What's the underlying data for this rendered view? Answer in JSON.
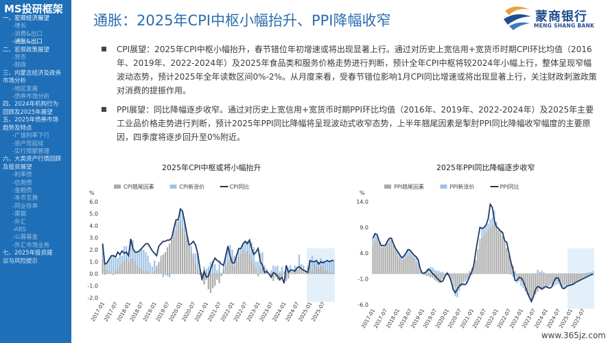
{
  "sidebar": {
    "title": "MS投研框架",
    "items": [
      {
        "label": "一、宏观经济展望",
        "level": 1,
        "active": true
      },
      {
        "label": "-增长",
        "level": 2
      },
      {
        "label": "-消费&出口",
        "level": 2
      },
      {
        "label": "-通胀&出口",
        "level": 2,
        "active": true
      },
      {
        "label": "二、宏观政策展望",
        "level": 1
      },
      {
        "label": "-货币",
        "level": 2
      },
      {
        "label": "-财政",
        "level": 2
      },
      {
        "label": "三、内蒙古经济及政务",
        "level": 1
      },
      {
        "label": "市场分析",
        "level": 1
      },
      {
        "label": "-地区发展",
        "level": 2
      },
      {
        "label": "-债券市场分析",
        "level": 2
      },
      {
        "label": "四、2024年机构行为",
        "level": 1
      },
      {
        "label": "回顾及2025年展望",
        "level": 1
      },
      {
        "label": "五、2025年债券市场",
        "level": 1
      },
      {
        "label": "趋势及特点",
        "level": 1
      },
      {
        "label": "-广谱利率下行",
        "level": 2
      },
      {
        "label": "-资产荒延续",
        "level": 2
      },
      {
        "label": "-实行限额管理",
        "level": 2
      },
      {
        "label": "六、大类资产行情回顾",
        "level": 1
      },
      {
        "label": "及投资展望",
        "level": 1
      },
      {
        "label": "-利率债",
        "level": 2
      },
      {
        "label": "-信用债",
        "level": 2
      },
      {
        "label": "-金融债",
        "level": 2
      },
      {
        "label": "-本币互换",
        "level": 2
      },
      {
        "label": "-同业存单",
        "level": 2
      },
      {
        "label": "-票据",
        "level": 2
      },
      {
        "label": "-外汇",
        "level": 2
      },
      {
        "label": "-ABS",
        "level": 2
      },
      {
        "label": "-公募基金",
        "level": 2
      },
      {
        "label": "-外汇市场业务",
        "level": 2
      },
      {
        "label": "七、2025年投资建",
        "level": 1
      },
      {
        "label": "议与风险提示",
        "level": 1
      }
    ]
  },
  "header": {
    "title": "通胀：2025年CPI中枢小幅抬升、PPI降幅收窄"
  },
  "logo": {
    "brand": "蒙商银行",
    "brand_en": "MENG SHANG BANK"
  },
  "bullets": [
    {
      "text": "CPI展望：2025年CPI中枢小幅抬升，春节错位年初增速或将出现显著上行。通过对历史上宽信用+宽货币时期CPI环比均值（2016年、2019年、2022-2024年）及2025年食品类和服务价格走势进行判断，预计全年CPI中枢将较2024年小幅上行，整体呈现窄幅波动态势，预计2025年全年读数区间0%-2%。从月度来看，受春节错位影响1月CPI同比增速或将出现显著上行，关注财政刺激政策对消费的提振作用。"
    },
    {
      "text": "PPI展望：同比降幅逐步收窄。通过对历史上宽信用+宽货币时期PPI环比均值（2016年、2019年、2022-2024年）及2025年主要工业品价格走势进行判断，预计2025年PPI同比降幅将呈现波动式收窄态势，上半年翘尾因素是掣肘PPI同比降幅收窄幅度的主要原因，四季度将逐步回升至0%附近。"
    }
  ],
  "chart_data": [
    {
      "type": "bar",
      "title": "2025年CPI中枢或将小幅抬升",
      "ylabel": "%",
      "ylim": [
        -2.0,
        6.0
      ],
      "yticks": [
        -2.0,
        -1.0,
        0.0,
        1.0,
        2.0,
        3.0,
        4.0,
        5.0,
        6.0
      ],
      "x_ticks": [
        "2017-01",
        "2017-07",
        "2018-01",
        "2018-07",
        "2019-01",
        "2019-07",
        "2020-01",
        "2020-07",
        "2021-01",
        "2021-07",
        "2022-01",
        "2022-07",
        "2023-01",
        "2023-07",
        "2024-01",
        "2024-07",
        "2025-01",
        "2025-07"
      ],
      "grid": false,
      "legend_position": "top",
      "forecast_highlight_from": "2024-12",
      "series": [
        {
          "name": "CPI翘尾因素",
          "kind": "bar",
          "color": "#aaaaaa",
          "values": [
            1.2,
            0.9,
            0.3,
            0.2,
            0.1,
            -0.1,
            0.2,
            0.4,
            0.7,
            0.9,
            1.1,
            1.3,
            1.0,
            1.2,
            1.3,
            1.0,
            0.7,
            0.5,
            0.4,
            0.2,
            0.3,
            0.2,
            0.1,
            0.0,
            0.2,
            0.5,
            0.9,
            1.1,
            1.6,
            1.8,
            2.2,
            2.5,
            2.9,
            3.1,
            3.6,
            4.2,
            4.4,
            3.8,
            3.3,
            2.9,
            2.4,
            1.9,
            1.4,
            0.9,
            0.4,
            -0.1,
            -0.6,
            -0.9,
            -0.5,
            -1.3,
            -1.6,
            -1.2,
            -1.0,
            -0.5,
            -0.8,
            -0.2,
            0.4,
            0.6,
            1.0,
            1.2,
            1.3,
            0.6,
            1.0,
            1.4,
            1.6,
            2.0,
            1.8,
            1.9,
            1.6,
            1.2,
            0.8,
            0.4,
            -0.2,
            0.4,
            0.6,
            0.5,
            0.2,
            0.0,
            -0.3,
            -0.6,
            -0.3,
            -0.5,
            -0.6,
            -0.3,
            0.0,
            -0.6,
            -0.4,
            0.1,
            0.1,
            0.2,
            0.3,
            0.7,
            0.3,
            0.3,
            0.1,
            0.1,
            0.7,
            0.2,
            0.9,
            0.6,
            0.4,
            0.6,
            0.5,
            0.3,
            0.3,
            0.2,
            0.1,
            0.1
          ]
        },
        {
          "name": "CPI新涨价",
          "kind": "bar",
          "color": "#9dc3e6",
          "values": [
            1.3,
            -0.1,
            0.6,
            1.0,
            1.4,
            1.6,
            1.2,
            0.9,
            0.9,
            0.6,
            1.2,
            1.0,
            0.8,
            1.7,
            1.5,
            0.8,
            1.1,
            1.4,
            1.7,
            1.8,
            1.5,
            1.3,
            0.8,
            0.6,
            0.9,
            0.2,
            0.1,
            0.4,
            -0.3,
            -0.1,
            -0.2,
            -0.3,
            0.1,
            0.7,
            0.9,
            0.3,
            1.0,
            1.4,
            1.0,
            0.4,
            0.0,
            0.4,
            0.3,
            0.8,
            1.3,
            0.4,
            0.1,
            0.6,
            0.4,
            0.6,
            1.0,
            1.1,
            0.8,
            0.3,
            1.1,
            0.1,
            0.4,
            1.1,
            1.3,
            1.2,
            0.7,
            0.9,
            0.6,
            0.7,
            0.5,
            0.5,
            0.9,
            0.8,
            1.3,
            1.4,
            1.4,
            0.6,
            1.0,
            1.3,
            1.2,
            0.2,
            0.2,
            0.0,
            0.3,
            0.7,
            0.6,
            0.7,
            0.2,
            0.6,
            0.2,
            0.7,
            0.5,
            0.6,
            0.2,
            0.5,
            0.2,
            0.9,
            0.5,
            0.4,
            0.2,
            0.5,
            0.4,
            1.3,
            0.2,
            0.5,
            0.6,
            0.7,
            0.6,
            0.7,
            0.8,
            0.8,
            1.0,
            1.0
          ]
        },
        {
          "name": "CPI同比",
          "kind": "line",
          "color": "#1f3864",
          "values": [
            2.5,
            0.8,
            0.9,
            1.2,
            1.5,
            1.5,
            1.4,
            1.8,
            1.6,
            1.9,
            1.7,
            1.8,
            1.5,
            2.9,
            2.1,
            1.8,
            1.8,
            1.9,
            2.1,
            2.3,
            2.5,
            2.5,
            2.2,
            1.9,
            1.7,
            1.5,
            2.3,
            2.5,
            2.7,
            2.7,
            2.8,
            2.8,
            3.0,
            3.8,
            4.5,
            4.5,
            5.4,
            5.2,
            4.3,
            3.3,
            2.4,
            2.5,
            2.7,
            2.4,
            1.7,
            0.5,
            -0.5,
            0.2,
            -0.3,
            -0.2,
            0.4,
            0.9,
            1.3,
            1.1,
            1.0,
            0.8,
            0.7,
            1.5,
            2.3,
            1.5,
            0.9,
            0.9,
            1.5,
            2.1,
            2.1,
            2.5,
            2.7,
            2.5,
            2.8,
            2.1,
            1.6,
            1.8,
            2.1,
            1.0,
            0.7,
            0.1,
            0.2,
            0.0,
            -0.3,
            0.1,
            0.0,
            -0.2,
            -0.5,
            -0.3,
            -0.8,
            0.7,
            0.1,
            0.3,
            0.3,
            0.2,
            0.5,
            0.6,
            0.4,
            0.3,
            0.2,
            0.1,
            1.1,
            1.0,
            1.0,
            1.1,
            0.8,
            1.0,
            0.9,
            1.0,
            1.1,
            1.0,
            1.1,
            1.1
          ]
        }
      ]
    },
    {
      "type": "bar",
      "title": "2025年PPI同比降幅逐步收窄",
      "ylabel": "%",
      "ylim": [
        -6.0,
        14.0
      ],
      "yticks": [
        -6.0,
        -1.0,
        4.0,
        9.0,
        14.0
      ],
      "x_ticks": [
        "2017-01",
        "2017-07",
        "2018-01",
        "2018-07",
        "2019-01",
        "2019-07",
        "2020-01",
        "2020-07",
        "2021-01",
        "2021-07",
        "2022-01",
        "2022-07",
        "2023-01",
        "2023-07",
        "2024-01",
        "2024-07",
        "2025-01",
        "2025-07"
      ],
      "grid": false,
      "legend_position": "top",
      "forecast_highlight_from": "2024-12",
      "series": [
        {
          "name": "PPI翘尾因素",
          "kind": "bar",
          "color": "#aaaaaa",
          "values": [
            5.5,
            6.5,
            6.8,
            6.0,
            5.0,
            5.0,
            5.2,
            5.8,
            6.0,
            6.5,
            5.5,
            4.5,
            3.5,
            3.0,
            2.5,
            2.8,
            3.0,
            3.5,
            4.0,
            3.5,
            3.0,
            2.0,
            1.5,
            0.5,
            0.0,
            -0.2,
            -0.4,
            -0.5,
            -0.7,
            -0.8,
            -1.2,
            -1.5,
            -1.8,
            -1.5,
            -1.0,
            -0.5,
            -0.3,
            -0.6,
            -1.0,
            -1.5,
            -2.5,
            -3.0,
            -2.5,
            -2.0,
            -1.5,
            -1.0,
            -0.5,
            0.5,
            1.0,
            1.5,
            2.5,
            4.5,
            6.0,
            7.0,
            7.5,
            8.0,
            8.5,
            9.0,
            9.5,
            9.8,
            9.0,
            8.5,
            8.0,
            7.0,
            6.0,
            5.0,
            3.5,
            2.5,
            1.5,
            0.5,
            -0.5,
            -1.0,
            -1.5,
            -2.0,
            -3.0,
            -4.0,
            -4.5,
            -5.0,
            -4.5,
            -4.0,
            -3.5,
            -3.0,
            -3.0,
            -3.0,
            -2.5,
            -2.5,
            -2.0,
            -1.8,
            -1.5,
            -1.5,
            -1.5,
            -1.8,
            -2.0,
            -2.2,
            -2.2,
            -2.0,
            -1.8,
            -1.8,
            -1.7,
            -1.6,
            -1.5,
            -1.2,
            -1.0,
            -0.8,
            -0.6,
            -0.4,
            -0.2,
            -0.1
          ]
        },
        {
          "name": "PPI新涨价",
          "kind": "bar",
          "color": "#9dc3e6",
          "values": [
            1.4,
            1.3,
            0.8,
            0.4,
            0.5,
            0.5,
            0.3,
            0.5,
            0.9,
            0.4,
            0.3,
            0.4,
            0.8,
            0.7,
            0.6,
            0.6,
            1.0,
            1.2,
            0.6,
            0.6,
            0.6,
            1.3,
            1.2,
            0.4,
            0.1,
            0.4,
            0.8,
            1.1,
            1.3,
            1.2,
            0.8,
            0.6,
            0.6,
            0.3,
            0.4,
            0.0,
            0.4,
            0.2,
            -0.5,
            -1.6,
            -1.9,
            -1.6,
            -0.8,
            -0.5,
            -0.6,
            -0.6,
            -1.0,
            -0.9,
            -0.3,
            0.2,
            0.2,
            0.3,
            0.8,
            1.8,
            1.5,
            1.5,
            1.2,
            1.6,
            1.5,
            2.5,
            1.1,
            0.3,
            0.3,
            0.3,
            0.3,
            0.0,
            0.3,
            -0.2,
            -0.6,
            -0.6,
            -1.3,
            -0.5,
            -0.9,
            -0.8,
            -0.5,
            -0.1,
            0.0,
            -0.4,
            0.1,
            0.0,
            0.8,
            0.4,
            0.6,
            0.3,
            0.0,
            -0.2,
            -0.3,
            -0.5,
            -0.9,
            -0.6,
            -0.5,
            -0.6,
            -0.8,
            -0.7,
            -0.5,
            -0.5,
            -0.4,
            -0.3,
            -0.2,
            -0.1,
            0.0,
            0.0,
            0.0,
            0.1,
            0.2,
            0.3,
            0.4,
            0.5
          ]
        },
        {
          "name": "PPI同比",
          "kind": "line",
          "color": "#1f3864",
          "values": [
            6.9,
            7.8,
            7.6,
            6.4,
            5.5,
            5.5,
            5.5,
            6.3,
            6.9,
            6.9,
            5.8,
            4.9,
            4.3,
            3.7,
            3.1,
            3.4,
            4.0,
            4.7,
            4.6,
            4.1,
            3.6,
            3.3,
            2.7,
            0.9,
            0.1,
            0.1,
            0.4,
            0.9,
            0.6,
            0.0,
            -0.3,
            -0.8,
            -1.2,
            -1.6,
            -1.4,
            -0.5,
            0.1,
            -0.4,
            -1.5,
            -3.1,
            -3.7,
            -3.0,
            -2.4,
            -2.0,
            -2.1,
            -2.1,
            -1.5,
            -0.4,
            0.3,
            1.7,
            4.4,
            6.8,
            9.0,
            8.8,
            9.0,
            9.5,
            10.7,
            13.5,
            12.9,
            10.3,
            9.1,
            8.8,
            8.3,
            8.0,
            6.4,
            6.1,
            4.2,
            2.3,
            0.9,
            -1.3,
            -1.3,
            -0.7,
            -0.8,
            -1.4,
            -2.5,
            -3.6,
            -4.6,
            -5.4,
            -4.4,
            -3.0,
            -2.5,
            -2.6,
            -3.0,
            -2.7,
            -2.5,
            -2.7,
            -2.8,
            -2.5,
            -1.4,
            -0.8,
            -0.8,
            -1.8,
            -2.8,
            -2.9,
            -2.5,
            -2.3,
            -2.2,
            -2.1,
            -1.8,
            -1.6,
            -1.4,
            -1.2,
            -1.0,
            -0.8,
            -0.6,
            -0.4,
            -0.2,
            -0.1
          ]
        }
      ]
    }
  ],
  "watermark": "www.365jz.com"
}
